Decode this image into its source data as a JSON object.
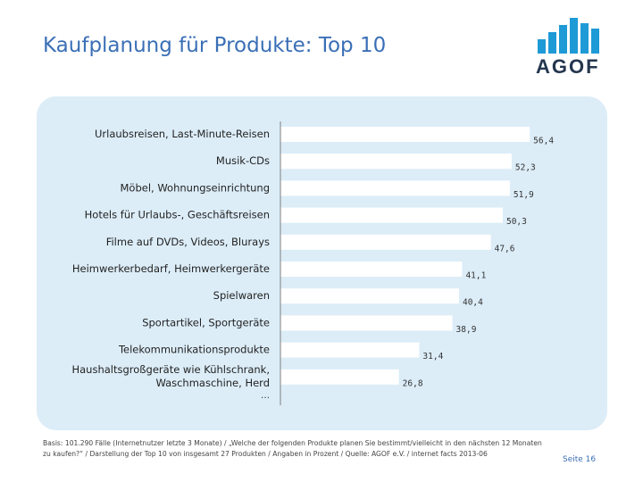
{
  "header": {
    "title": "Kaufplanung für Produkte: Top 10",
    "logo_text": "AGOF"
  },
  "colors": {
    "title": "#3a6fb6",
    "bar": "#ffffff",
    "panel": "#dcedf8",
    "logo_bars": "#1e9ad6",
    "logo_text": "#24364f"
  },
  "chart_data": {
    "type": "bar",
    "orientation": "horizontal",
    "categories": [
      "Urlaubsreisen, Last-Minute-Reisen",
      "Musik-CDs",
      "Möbel, Wohnungseinrichtung",
      "Hotels für Urlaubs-, Geschäftsreisen",
      "Filme auf DVDs, Videos, Blurays",
      "Heimwerkerbedarf, Heimwerkergeräte",
      "Spielwaren",
      "Sportartikel, Sportgeräte",
      "Telekommunikationsprodukte",
      "Haushaltsgroßgeräte wie Kühlschrank, Waschmaschine, Herd"
    ],
    "values": [
      56.4,
      52.3,
      51.9,
      50.3,
      47.6,
      41.1,
      40.4,
      38.9,
      31.4,
      26.8
    ],
    "value_labels": [
      "56,4",
      "52,3",
      "51,9",
      "50,3",
      "47,6",
      "41,1",
      "40,4",
      "38,9",
      "31,4",
      "26,8"
    ],
    "trailing_label": "…",
    "unit": "%",
    "xlim": [
      0,
      60
    ],
    "grid": false,
    "legend": "none"
  },
  "footer": {
    "footnote": "Basis: 101.290 Fälle (Internetnutzer letzte 3 Monate) / „Welche der folgenden Produkte planen Sie bestimmt/vielleicht in den nächsten 12 Monaten zu kaufen?“ / Darstellung der Top 10 von insgesamt 27 Produkten / Angaben in Prozent / Quelle: AGOF e.V. / internet facts 2013-06",
    "page": "Seite 16"
  }
}
